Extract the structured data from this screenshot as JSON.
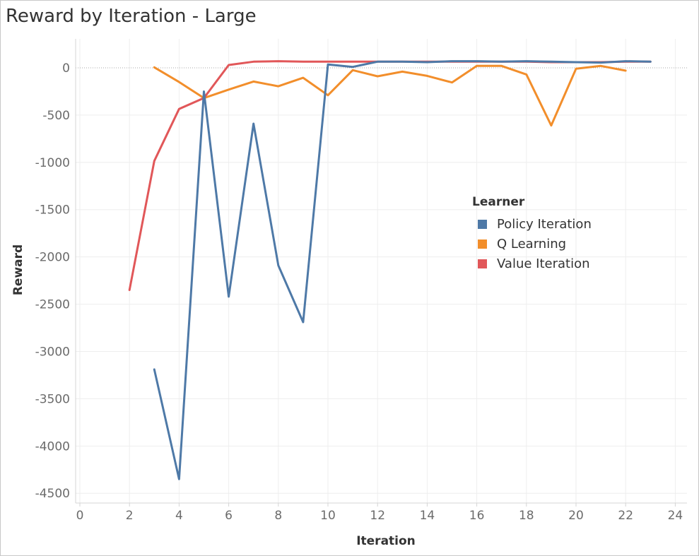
{
  "title": "Reward by Iteration - Large",
  "chart_data": {
    "type": "line",
    "title": "Reward by Iteration - Large",
    "xlabel": "Iteration",
    "ylabel": "Reward",
    "xlim": [
      0,
      24
    ],
    "ylim": [
      -4500,
      0
    ],
    "x_ticks": [
      0,
      2,
      4,
      6,
      8,
      10,
      12,
      14,
      16,
      18,
      20,
      22,
      24
    ],
    "y_ticks": [
      0,
      -500,
      -1000,
      -1500,
      -2000,
      -2500,
      -3000,
      -3500,
      -4000,
      -4500
    ],
    "grid": true,
    "legend": {
      "title": "Learner",
      "position": "right"
    },
    "series": [
      {
        "name": "Policy Iteration",
        "color": "#4e79a7",
        "x": [
          3,
          4,
          5,
          6,
          7,
          8,
          9,
          10,
          11,
          12,
          13,
          14,
          15,
          16,
          17,
          18,
          19,
          20,
          21,
          22,
          23
        ],
        "y": [
          -3190,
          -4350,
          -250,
          -2420,
          -590,
          -2090,
          -2690,
          35,
          10,
          65,
          65,
          60,
          70,
          70,
          65,
          70,
          65,
          60,
          55,
          70,
          65
        ]
      },
      {
        "name": "Q Learning",
        "color": "#f28e2b",
        "x": [
          3,
          4,
          5,
          6,
          7,
          8,
          9,
          10,
          11,
          12,
          13,
          14,
          15,
          16,
          17,
          18,
          19,
          20,
          21,
          22
        ],
        "y": [
          5,
          -150,
          -320,
          -230,
          -145,
          -195,
          -105,
          -290,
          -25,
          -90,
          -40,
          -85,
          -155,
          20,
          20,
          -70,
          -610,
          -10,
          20,
          -30
        ]
      },
      {
        "name": "Value Iteration",
        "color": "#e15759",
        "x": [
          2,
          3,
          4,
          5,
          6,
          7,
          8,
          9,
          10,
          11,
          12,
          13,
          14,
          15,
          16,
          17,
          18,
          19,
          20,
          21,
          22,
          23
        ],
        "y": [
          -2350,
          -985,
          -435,
          -320,
          30,
          65,
          70,
          65,
          65,
          65,
          65,
          65,
          65,
          65,
          65,
          65,
          65,
          60,
          60,
          60,
          65,
          65
        ]
      }
    ]
  }
}
